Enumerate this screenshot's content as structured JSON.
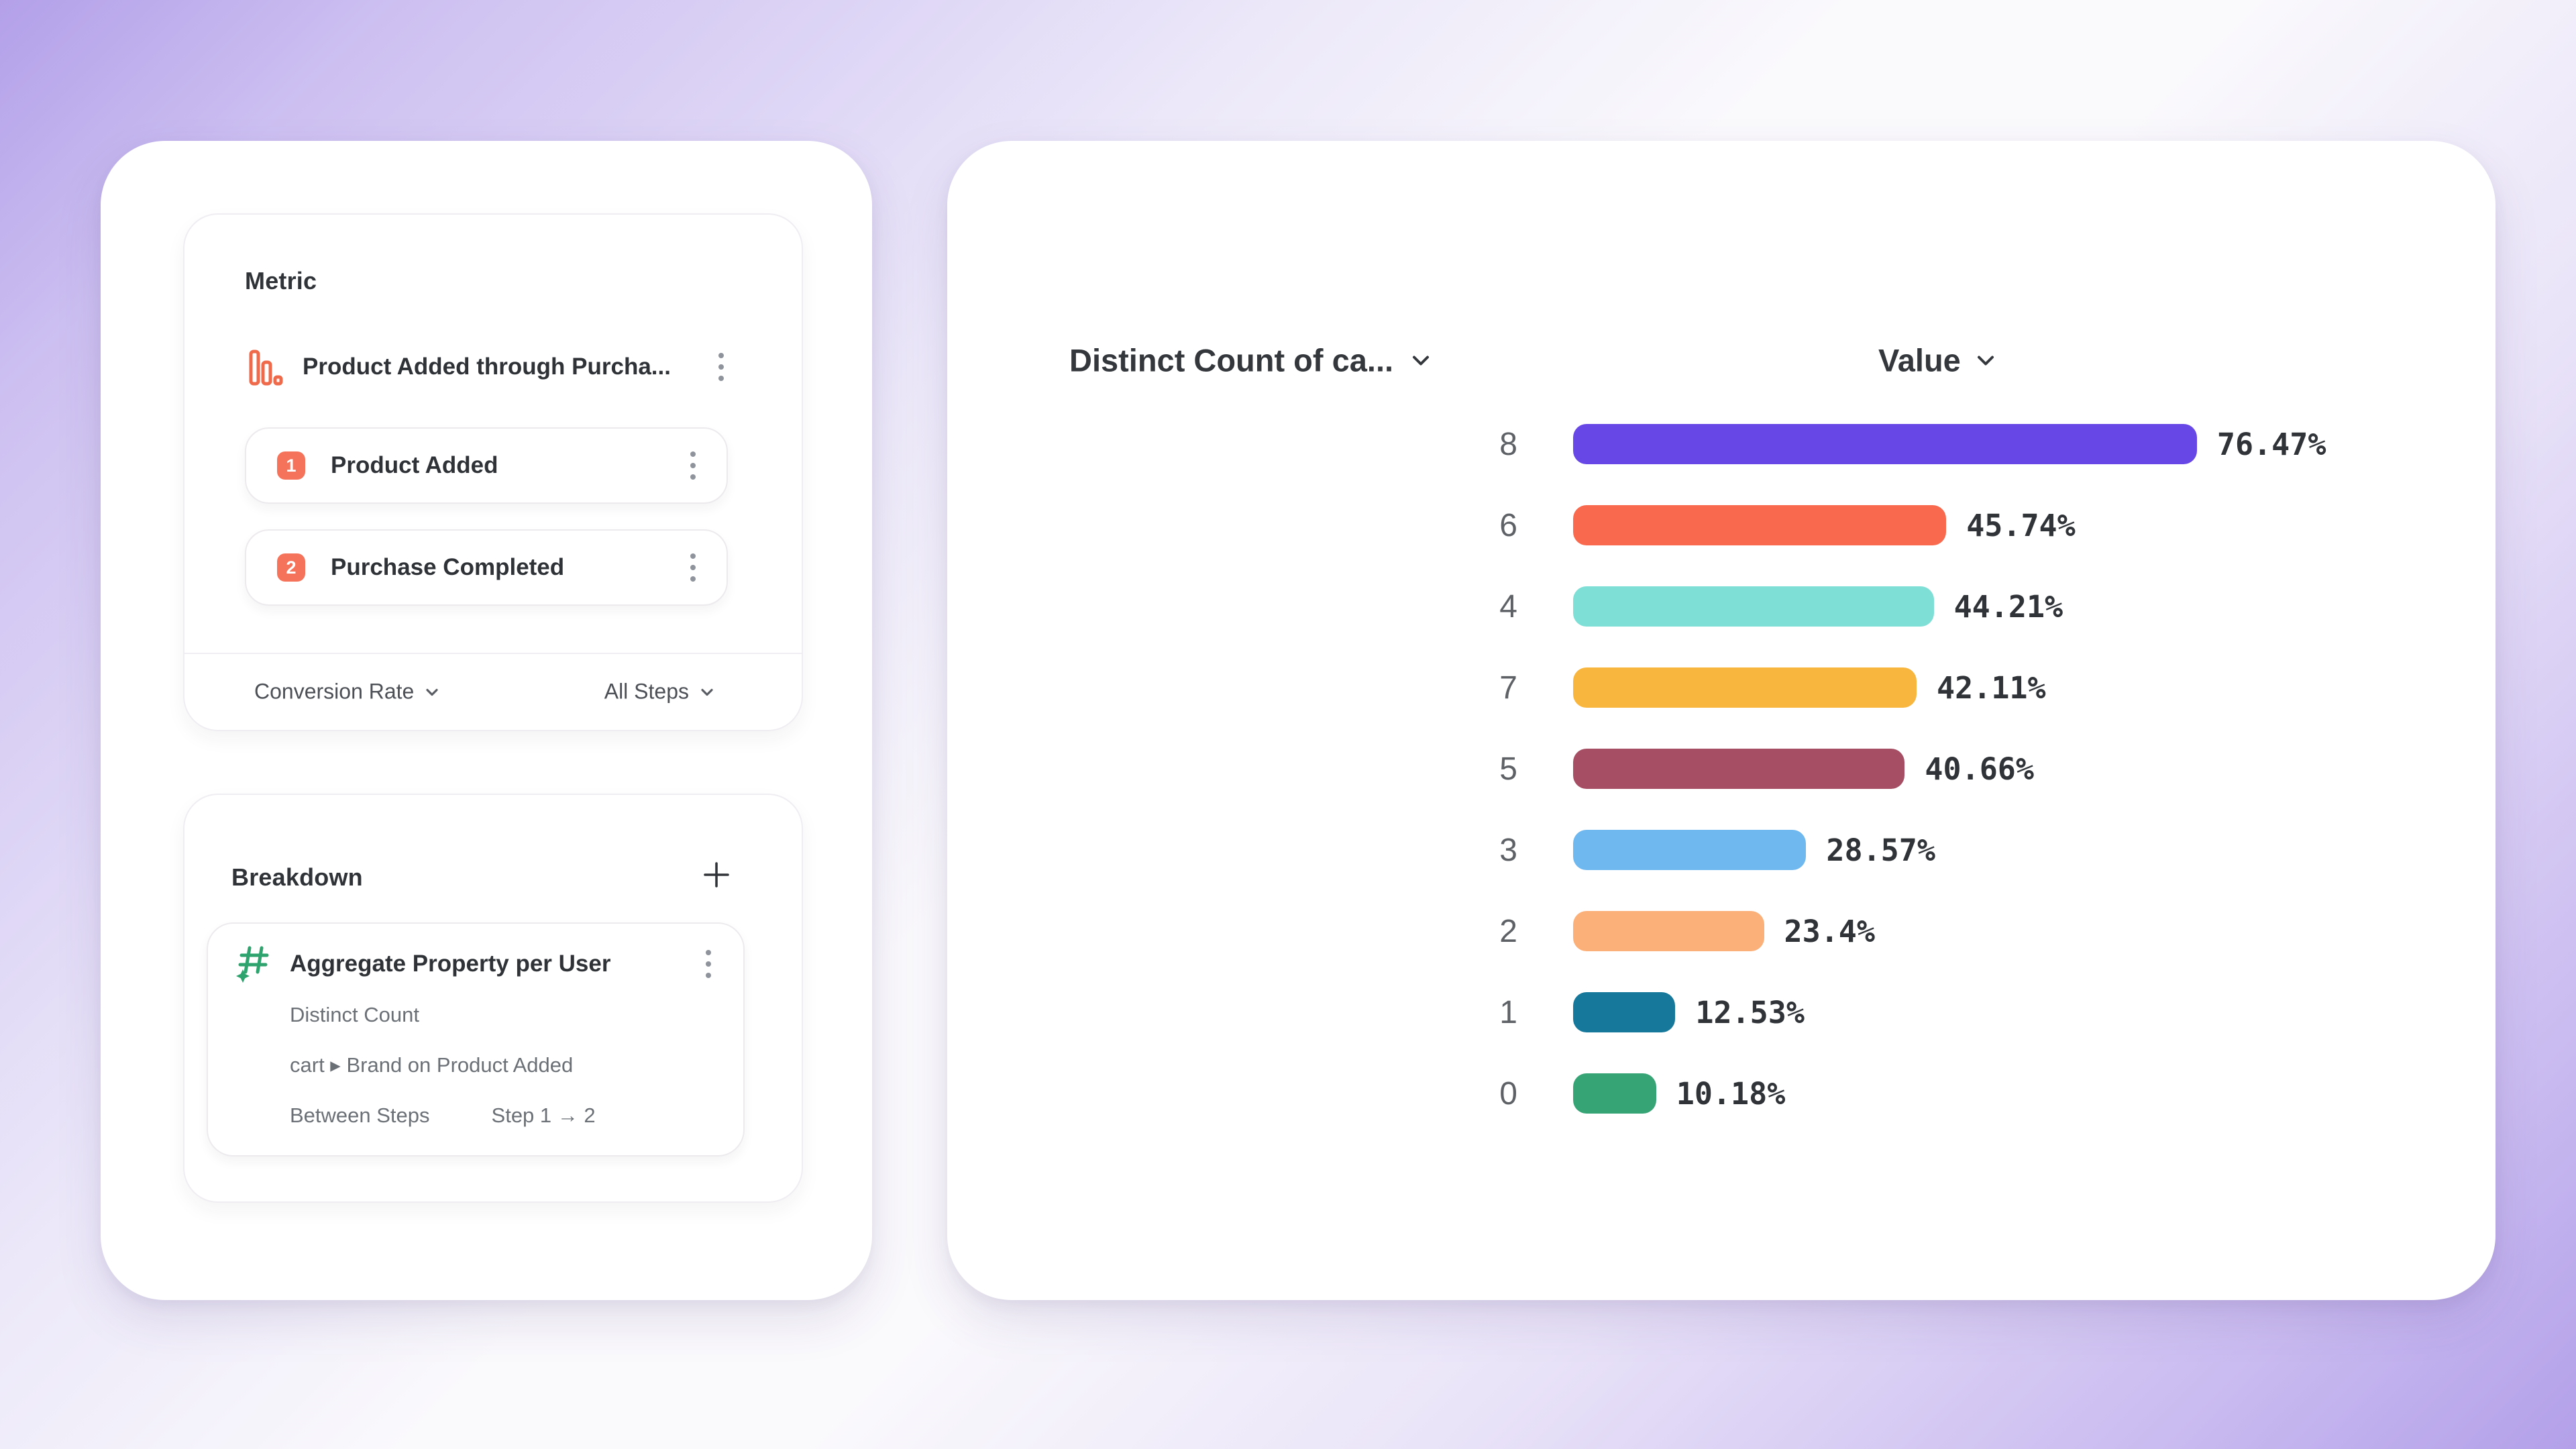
{
  "metric_panel": {
    "title": "Metric",
    "funnel_name": "Product Added through Purcha...",
    "steps": [
      {
        "index": "1",
        "label": "Product Added"
      },
      {
        "index": "2",
        "label": "Purchase Completed"
      }
    ],
    "measure_dropdown": "Conversion Rate",
    "steps_dropdown": "All Steps",
    "badge_color": "#f5735a",
    "funnel_icon_color": "#ef6a4a"
  },
  "breakdown_panel": {
    "title": "Breakdown",
    "item": {
      "title": "Aggregate Property per User",
      "icon_color": "#2fa36e",
      "detail_rows": [
        "Distinct Count",
        "cart ▸ Brand on Product Added"
      ],
      "between_steps_label": "Between Steps",
      "between_steps_value": "Step 1 → 2"
    }
  },
  "chart_header": {
    "left": "Distinct Count of ca...",
    "right": "Value"
  },
  "chart_data": {
    "type": "bar",
    "orientation": "horizontal",
    "title": "",
    "xlabel": "Value",
    "ylabel": "Distinct Count of ca...",
    "categories": [
      "8",
      "6",
      "4",
      "7",
      "5",
      "3",
      "2",
      "1",
      "0"
    ],
    "values": [
      76.47,
      45.74,
      44.21,
      42.11,
      40.66,
      28.57,
      23.4,
      12.53,
      10.18
    ],
    "value_labels": [
      "76.47%",
      "45.74%",
      "44.21%",
      "42.11%",
      "40.66%",
      "28.57%",
      "23.4%",
      "12.53%",
      "10.18%"
    ],
    "bar_colors": [
      "#6847e7",
      "#f8694d",
      "#7ddfd5",
      "#f8b63f",
      "#a64f64",
      "#6fb8ef",
      "#fbaf79",
      "#16789b",
      "#37a476"
    ],
    "xlim": [
      0,
      100
    ],
    "grid": false,
    "legend": null
  }
}
